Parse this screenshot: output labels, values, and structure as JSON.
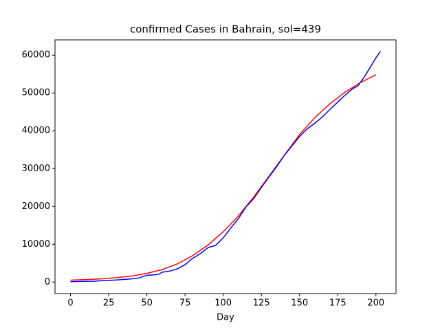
{
  "chart_data": {
    "type": "line",
    "title": "confirmed Cases in Bahrain, sol=439",
    "x_label": "Day",
    "xlim": [
      -10.15,
      213.15
    ],
    "ylim": [
      -3045,
      64045
    ],
    "xticks": [
      0,
      25,
      50,
      75,
      100,
      125,
      150,
      175,
      200
    ],
    "yticks": [
      0,
      10000,
      20000,
      30000,
      40000,
      50000,
      60000
    ],
    "grid": false,
    "series": [
      {
        "color": "#ff0000",
        "x": [
          0,
          10,
          20,
          30,
          40,
          50,
          60,
          70,
          80,
          90,
          100,
          110,
          120,
          130,
          140,
          150,
          160,
          170,
          180,
          190,
          200
        ],
        "values": [
          500,
          650,
          850,
          1150,
          1600,
          2300,
          3300,
          4800,
          7000,
          9800,
          13300,
          17500,
          22500,
          28000,
          33500,
          39000,
          43500,
          47200,
          50300,
          52800,
          54800
        ]
      },
      {
        "color": "#0000ff",
        "x": [
          0,
          10,
          15,
          20,
          30,
          40,
          45,
          50,
          55,
          58,
          60,
          65,
          70,
          75,
          80,
          85,
          90,
          95,
          100,
          105,
          110,
          115,
          120,
          125,
          130,
          135,
          140,
          145,
          150,
          155,
          160,
          165,
          170,
          175,
          180,
          185,
          188,
          192,
          196,
          200,
          203
        ],
        "values": [
          100,
          200,
          200,
          350,
          550,
          850,
          1100,
          1800,
          1900,
          2100,
          2600,
          2900,
          3500,
          4600,
          6300,
          7500,
          9100,
          9700,
          11700,
          14300,
          16800,
          19900,
          22100,
          25000,
          27800,
          30500,
          33500,
          36000,
          38500,
          40500,
          42000,
          43700,
          45700,
          47600,
          49500,
          51200,
          51800,
          54000,
          56600,
          59300,
          61000
        ]
      }
    ]
  }
}
